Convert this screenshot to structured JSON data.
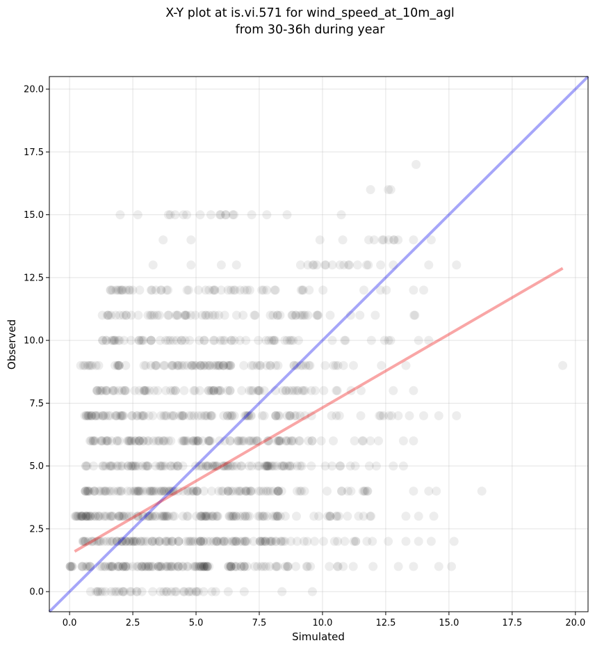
{
  "chart_data": {
    "type": "scatter",
    "title_lines": [
      "X-Y plot at is.vi.571 for wind_speed_at_10m_agl",
      "from 30-36h during year"
    ],
    "xlabel": "Simulated",
    "ylabel": "Observed",
    "xlim": [
      -0.8,
      20.5
    ],
    "ylim": [
      -0.8,
      20.5
    ],
    "xticks": [
      0.0,
      2.5,
      5.0,
      7.5,
      10.0,
      12.5,
      15.0,
      17.5,
      20.0
    ],
    "yticks": [
      0.0,
      2.5,
      5.0,
      7.5,
      10.0,
      12.5,
      15.0,
      17.5,
      20.0
    ],
    "xtick_labels": [
      "0.0",
      "2.5",
      "5.0",
      "7.5",
      "10.0",
      "12.5",
      "15.0",
      "17.5",
      "20.0"
    ],
    "ytick_labels": [
      "0.0",
      "2.5",
      "5.0",
      "7.5",
      "10.0",
      "12.5",
      "15.0",
      "17.5",
      "20.0"
    ],
    "grid": true,
    "point_color": "#000000",
    "point_alpha": 0.07,
    "observation_rows": [
      {
        "y": 0,
        "x_ranges": [
          [
            0.4,
            5.8
          ],
          [
            6.0,
            7.2
          ]
        ],
        "weight": 0.5,
        "extra": [
          8.4,
          9.6
        ]
      },
      {
        "y": 1,
        "x_ranges": [
          [
            0.0,
            8.2
          ],
          [
            8.2,
            11.6
          ]
        ],
        "weight": 1.0,
        "extra": [
          12.0,
          13.0,
          13.6,
          14.6,
          15.1
        ]
      },
      {
        "y": 2,
        "x_ranges": [
          [
            0.4,
            8.6
          ],
          [
            8.6,
            12.0
          ]
        ],
        "weight": 1.0,
        "extra": [
          12.6,
          13.3,
          13.8,
          14.3,
          15.2
        ]
      },
      {
        "y": 3,
        "x_ranges": [
          [
            0.2,
            8.4
          ],
          [
            8.4,
            12.4
          ]
        ],
        "weight": 1.0,
        "extra": [
          13.3,
          13.8,
          14.4
        ]
      },
      {
        "y": 4,
        "x_ranges": [
          [
            0.6,
            8.6
          ],
          [
            8.6,
            12.4
          ]
        ],
        "weight": 0.9,
        "extra": [
          13.6,
          14.2,
          14.5,
          16.3
        ]
      },
      {
        "y": 5,
        "x_ranges": [
          [
            0.6,
            8.8
          ],
          [
            8.8,
            12.4
          ]
        ],
        "weight": 0.8,
        "extra": [
          12.8,
          13.2
        ]
      },
      {
        "y": 6,
        "x_ranges": [
          [
            0.8,
            9.4
          ],
          [
            9.4,
            12.6
          ]
        ],
        "weight": 0.8,
        "extra": [
          13.2,
          13.6
        ]
      },
      {
        "y": 7,
        "x_ranges": [
          [
            0.6,
            9.8
          ],
          [
            9.8,
            13.6
          ]
        ],
        "weight": 0.7,
        "extra": [
          14.0,
          14.6,
          15.3
        ]
      },
      {
        "y": 8,
        "x_ranges": [
          [
            1.0,
            9.6
          ],
          [
            9.6,
            12.0
          ]
        ],
        "weight": 0.6,
        "extra": [
          12.8,
          13.6
        ]
      },
      {
        "y": 9,
        "x_ranges": [
          [
            0.4,
            9.8
          ],
          [
            9.8,
            12.6
          ]
        ],
        "weight": 0.6,
        "extra": [
          13.3,
          19.5
        ]
      },
      {
        "y": 10,
        "x_ranges": [
          [
            1.3,
            9.4
          ],
          [
            9.4,
            12.8
          ]
        ],
        "weight": 0.5,
        "extra": [
          13.8,
          14.2
        ]
      },
      {
        "y": 11,
        "x_ranges": [
          [
            1.0,
            10.2
          ],
          [
            10.2,
            13.8
          ]
        ],
        "weight": 0.45,
        "extra": []
      },
      {
        "y": 12,
        "x_ranges": [
          [
            1.6,
            10.0
          ],
          [
            10.0,
            12.6
          ]
        ],
        "weight": 0.4,
        "extra": [
          13.6,
          14.0
        ]
      },
      {
        "y": 13,
        "x_ranges": [
          [
            9.0,
            12.0
          ]
        ],
        "weight": 0.35,
        "extra": [
          3.3,
          4.8,
          6.0,
          6.6,
          12.3,
          12.8,
          14.2,
          15.3
        ]
      },
      {
        "y": 14,
        "x_ranges": [
          [
            11.8,
            13.2
          ]
        ],
        "weight": 0.4,
        "extra": [
          3.7,
          4.8,
          9.9,
          10.8,
          13.6,
          14.3
        ]
      },
      {
        "y": 15,
        "x_ranges": [
          [
            3.5,
            6.8
          ],
          [
            10.5,
            11.8
          ]
        ],
        "weight": 0.25,
        "extra": [
          2.0,
          2.7,
          4.5,
          7.2,
          7.8,
          8.6
        ]
      },
      {
        "y": 16,
        "x_ranges": [],
        "weight": 0.0,
        "extra": [
          11.9,
          12.6,
          12.7
        ]
      },
      {
        "y": 17,
        "x_ranges": [],
        "weight": 0.0,
        "extra": [
          13.7
        ]
      }
    ],
    "lines": [
      {
        "color": "#0000ee",
        "alpha": 0.35,
        "x": [
          -0.8,
          20.5
        ],
        "y": [
          -0.8,
          20.5
        ]
      },
      {
        "color": "#ee0000",
        "alpha": 0.35,
        "x": [
          0.2,
          19.5
        ],
        "y": [
          1.6,
          12.87
        ]
      }
    ]
  }
}
